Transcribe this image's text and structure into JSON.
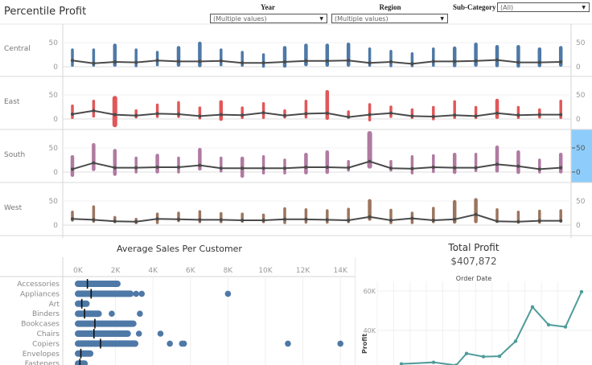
{
  "header": {
    "title": "Percentile Profit"
  },
  "filters": [
    {
      "label": "Year",
      "value": "(Multiple values)"
    },
    {
      "label": "Region",
      "value": "(Multiple values)"
    },
    {
      "label": "Sub-Category",
      "value": "(All)"
    }
  ],
  "percentile_chart": {
    "rows": [
      "Central",
      "East",
      "South",
      "West"
    ],
    "axis_ticks": [
      "50",
      "0"
    ],
    "colors": {
      "Central": "#4e79a7",
      "East": "#e15759",
      "South": "#b07aa1",
      "West": "#9c755f",
      "line": "#4a4a4a"
    },
    "series": {
      "Central": {
        "min": [
          0,
          0,
          0,
          -1,
          1,
          0,
          -1,
          1,
          0,
          -2,
          -2,
          1,
          0,
          0,
          0,
          -1,
          -1,
          0,
          -1,
          0,
          -1,
          -2,
          -1,
          0
        ],
        "max": [
          38,
          38,
          48,
          38,
          33,
          43,
          52,
          38,
          33,
          28,
          43,
          48,
          48,
          50,
          40,
          35,
          30,
          40,
          42,
          50,
          45,
          45,
          40,
          43
        ],
        "median": [
          13,
          7,
          10,
          9,
          13,
          11,
          11,
          12,
          8,
          8,
          10,
          12,
          12,
          13,
          8,
          10,
          6,
          11,
          11,
          12,
          14,
          9,
          9,
          10
        ]
      },
      "East": {
        "min": [
          0,
          3,
          -17,
          1,
          2,
          2,
          -1,
          -4,
          0,
          0,
          1,
          1,
          -2,
          2,
          -5,
          2,
          0,
          -3,
          0,
          0,
          0,
          0,
          1,
          0
        ],
        "max": [
          30,
          40,
          48,
          20,
          32,
          37,
          26,
          39,
          26,
          35,
          20,
          40,
          60,
          18,
          33,
          28,
          22,
          27,
          39,
          27,
          42,
          27,
          22,
          40
        ],
        "median": [
          10,
          17,
          9,
          7,
          11,
          10,
          6,
          9,
          8,
          13,
          7,
          11,
          12,
          4,
          9,
          12,
          6,
          5,
          8,
          6,
          12,
          8,
          9,
          9
        ]
      },
      "South": {
        "min": [
          -10,
          2,
          -8,
          -3,
          -3,
          -3,
          3,
          -1,
          -12,
          -5,
          -5,
          -5,
          -4,
          1,
          7,
          1,
          -5,
          -2,
          -4,
          0,
          -1,
          -4,
          -3,
          -3
        ],
        "max": [
          35,
          60,
          48,
          32,
          38,
          32,
          50,
          32,
          32,
          35,
          28,
          40,
          45,
          25,
          85,
          25,
          35,
          37,
          40,
          40,
          55,
          45,
          28,
          40
        ],
        "median": [
          6,
          19,
          9,
          9,
          10,
          10,
          14,
          8,
          8,
          8,
          8,
          10,
          10,
          9,
          22,
          8,
          7,
          10,
          9,
          9,
          16,
          12,
          6,
          9
        ]
      },
      "West": {
        "min": [
          7,
          5,
          4,
          2,
          2,
          6,
          4,
          4,
          5,
          4,
          2,
          3,
          3,
          4,
          9,
          2,
          2,
          4,
          3,
          4,
          9,
          3,
          3,
          5
        ],
        "max": [
          30,
          41,
          19,
          15,
          26,
          28,
          31,
          27,
          26,
          24,
          37,
          35,
          33,
          36,
          54,
          34,
          28,
          38,
          52,
          56,
          35,
          30,
          32,
          33
        ],
        "median": [
          13,
          11,
          8,
          7,
          13,
          12,
          11,
          11,
          10,
          10,
          12,
          12,
          11,
          10,
          17,
          10,
          14,
          10,
          12,
          22,
          8,
          7,
          9,
          9
        ]
      }
    }
  },
  "avg_sales_chart": {
    "title": "Average Sales Per Customer",
    "x_ticks": [
      "0K",
      "2K",
      "4K",
      "6K",
      "8K",
      "10K",
      "12K",
      "14K"
    ],
    "categories": [
      "Accessories",
      "Appliances",
      "Art",
      "Binders",
      "Bookcases",
      "Chairs",
      "Copiers",
      "Envelopes",
      "Fasteners"
    ],
    "color": "#4e79a7"
  },
  "total_profit": {
    "title": "Total Profit",
    "value": "$407,872",
    "subtitle": "Order Date",
    "y_label": "Profit",
    "y_ticks": [
      "60K",
      "40K"
    ],
    "color": "#4e9c9a"
  },
  "chart_data": [
    {
      "type": "scatter",
      "title": "Percentile Profit",
      "rows": [
        "Central",
        "East",
        "South",
        "West"
      ],
      "xlabel": "",
      "ylabel": "",
      "ylim": [
        -20,
        90
      ],
      "note": "24 periods per region; vertical range bars (min-max) with median line"
    },
    {
      "type": "scatter",
      "title": "Average Sales Per Customer",
      "categories": [
        "Accessories",
        "Appliances",
        "Art",
        "Binders",
        "Bookcases",
        "Chairs",
        "Copiers",
        "Envelopes",
        "Fasteners"
      ],
      "xlim": [
        0,
        14000
      ],
      "series": [
        {
          "name": "Accessories",
          "range": [
            0,
            2100
          ],
          "outliers": [],
          "median": 500
        },
        {
          "name": "Appliances",
          "range": [
            0,
            2800
          ],
          "outliers": [
            3100,
            3400,
            8000
          ],
          "median": 700
        },
        {
          "name": "Art",
          "range": [
            0,
            450
          ],
          "outliers": [],
          "median": 200
        },
        {
          "name": "Binders",
          "range": [
            0,
            1100
          ],
          "outliers": [
            1800,
            3300
          ],
          "median": 350
        },
        {
          "name": "Bookcases",
          "range": [
            0,
            2950
          ],
          "outliers": [],
          "median": 900
        },
        {
          "name": "Chairs",
          "range": [
            0,
            2650
          ],
          "outliers": [
            3250,
            4400
          ],
          "median": 850
        },
        {
          "name": "Copiers",
          "range": [
            0,
            3050
          ],
          "outliers": [
            4900,
            5550,
            5650,
            11200,
            14000
          ],
          "median": 1200
        },
        {
          "name": "Envelopes",
          "range": [
            0,
            650
          ],
          "outliers": [],
          "median": 150
        },
        {
          "name": "Fasteners",
          "range": [
            0,
            350
          ],
          "outliers": [],
          "median": 100
        }
      ]
    },
    {
      "type": "line",
      "title": "Total Profit",
      "subtitle": "Order Date",
      "ylabel": "Profit",
      "y": [
        23000,
        23800,
        22300,
        28300,
        26700,
        26900,
        34500,
        51900,
        42900,
        41800,
        59600
      ],
      "ylim": [
        20000,
        62000
      ]
    }
  ]
}
